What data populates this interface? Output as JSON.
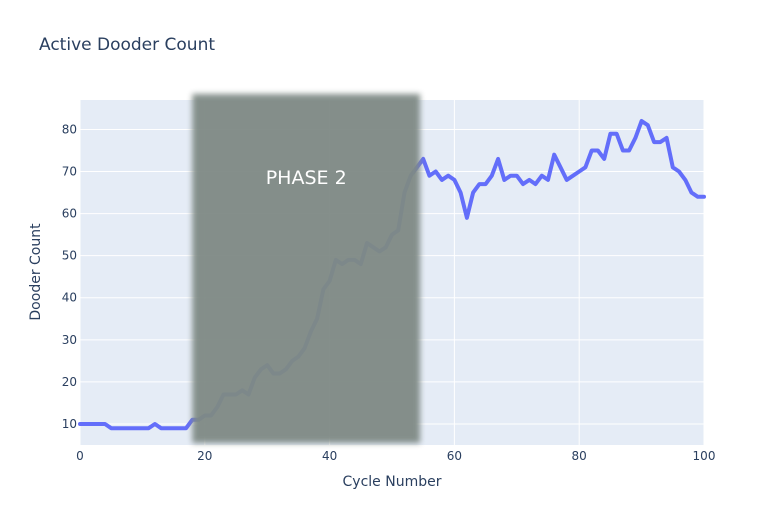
{
  "chart_data": {
    "type": "line",
    "title": "Active Dooder Count",
    "xlabel": "Cycle Number",
    "ylabel": "Dooder Count",
    "xlim": [
      0,
      100
    ],
    "ylim": [
      5,
      87
    ],
    "x_ticks": [
      0,
      20,
      40,
      60,
      80,
      100
    ],
    "y_ticks": [
      10,
      20,
      30,
      40,
      50,
      60,
      70,
      80
    ],
    "grid": true,
    "line_color": "#636efa",
    "plot_bg": "#e5ecf6",
    "shaded_region": {
      "x_start": 18,
      "x_end": 54.5,
      "color": "#7f8a85",
      "label": "PHASE 2"
    },
    "x": [
      0,
      1,
      2,
      3,
      4,
      5,
      6,
      7,
      8,
      9,
      10,
      11,
      12,
      13,
      14,
      15,
      16,
      17,
      18,
      19,
      20,
      21,
      22,
      23,
      24,
      25,
      26,
      27,
      28,
      29,
      30,
      31,
      32,
      33,
      34,
      35,
      36,
      37,
      38,
      39,
      40,
      41,
      42,
      43,
      44,
      45,
      46,
      47,
      48,
      49,
      50,
      51,
      52,
      53,
      54,
      55,
      56,
      57,
      58,
      59,
      60,
      61,
      62,
      63,
      64,
      65,
      66,
      67,
      68,
      69,
      70,
      71,
      72,
      73,
      74,
      75,
      76,
      77,
      78,
      79,
      80,
      81,
      82,
      83,
      84,
      85,
      86,
      87,
      88,
      89,
      90,
      91,
      92,
      93,
      94,
      95,
      96,
      97,
      98,
      99,
      100
    ],
    "y": [
      10,
      10,
      10,
      10,
      10,
      9,
      9,
      9,
      9,
      9,
      9,
      9,
      10,
      9,
      9,
      9,
      9,
      9,
      11,
      11,
      12,
      12,
      14,
      17,
      17,
      17,
      18,
      17,
      21,
      23,
      24,
      22,
      22,
      23,
      25,
      26,
      28,
      32,
      35,
      42,
      44,
      49,
      48,
      49,
      49,
      48,
      53,
      52,
      51,
      52,
      55,
      56,
      65,
      69,
      71,
      73,
      69,
      70,
      68,
      69,
      68,
      65,
      59,
      65,
      67,
      67,
      69,
      73,
      68,
      69,
      69,
      67,
      68,
      67,
      69,
      68,
      74,
      71,
      68,
      69,
      70,
      71,
      75,
      75,
      73,
      79,
      79,
      75,
      75,
      78,
      82,
      81,
      77,
      77,
      78,
      71,
      70,
      68,
      65,
      64,
      64
    ]
  }
}
